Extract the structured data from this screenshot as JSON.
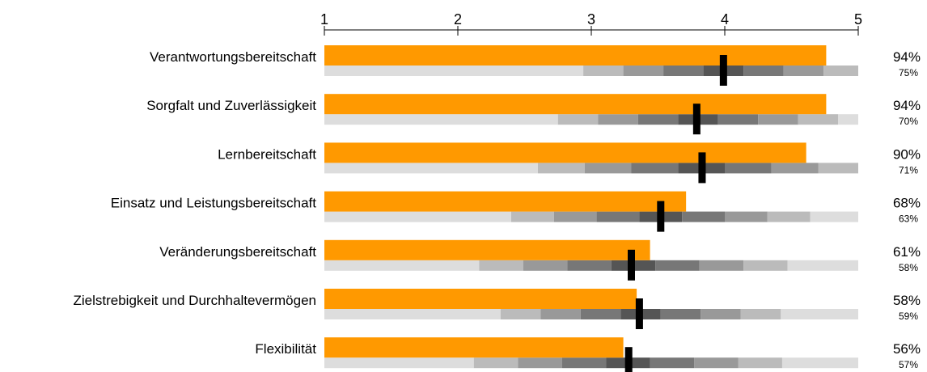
{
  "chart_data": {
    "type": "bullet",
    "xlim": [
      1,
      5
    ],
    "axis_ticks": [
      "1",
      "2",
      "3",
      "4",
      "5"
    ],
    "colors": {
      "bar": "#ff9900",
      "marker": "#000000",
      "band_light": "#dddddd",
      "band_1": "#bbbbbb",
      "band_2": "#999999",
      "band_3": "#777777",
      "band_4": "#555555"
    },
    "rows": [
      {
        "label": "Verantwortungsbereitschaft",
        "value": 4.76,
        "marker": 3.99,
        "pct_main": "94%",
        "pct_sub": "75%",
        "bands": [
          1,
          2.94,
          3.24,
          3.54,
          3.84,
          4.14,
          4.44,
          4.74,
          5
        ]
      },
      {
        "label": "Sorgfalt und Zuverlässigkeit",
        "value": 4.76,
        "marker": 3.79,
        "pct_main": "94%",
        "pct_sub": "70%",
        "bands": [
          1,
          2.75,
          3.05,
          3.35,
          3.65,
          3.95,
          4.25,
          4.55,
          4.85,
          5
        ]
      },
      {
        "label": "Lernbereitschaft",
        "value": 4.61,
        "marker": 3.83,
        "pct_main": "90%",
        "pct_sub": "71%",
        "bands": [
          1,
          2.6,
          2.95,
          3.3,
          3.65,
          4.0,
          4.35,
          4.7,
          5
        ]
      },
      {
        "label": "Einsatz und Leistungsbereitschaft",
        "value": 3.71,
        "marker": 3.52,
        "pct_main": "68%",
        "pct_sub": "63%",
        "bands": [
          1,
          2.4,
          2.72,
          3.04,
          3.36,
          3.68,
          4.0,
          4.32,
          4.64,
          5
        ]
      },
      {
        "label": "Veränderungsbereitschaft",
        "value": 3.44,
        "marker": 3.3,
        "pct_main": "61%",
        "pct_sub": "58%",
        "bands": [
          1,
          2.16,
          2.49,
          2.82,
          3.15,
          3.48,
          3.81,
          4.14,
          4.47,
          5
        ]
      },
      {
        "label": "Zielstrebigkeit und Durchhaltevermögen",
        "value": 3.34,
        "marker": 3.36,
        "pct_main": "58%",
        "pct_sub": "59%",
        "bands": [
          1,
          2.32,
          2.62,
          2.92,
          3.22,
          3.52,
          3.82,
          4.12,
          4.42,
          5
        ]
      },
      {
        "label": "Flexibilität",
        "value": 3.24,
        "marker": 3.28,
        "pct_main": "56%",
        "pct_sub": "57%",
        "bands": [
          1,
          2.12,
          2.45,
          2.78,
          3.11,
          3.44,
          3.77,
          4.1,
          4.43,
          5
        ]
      }
    ]
  }
}
